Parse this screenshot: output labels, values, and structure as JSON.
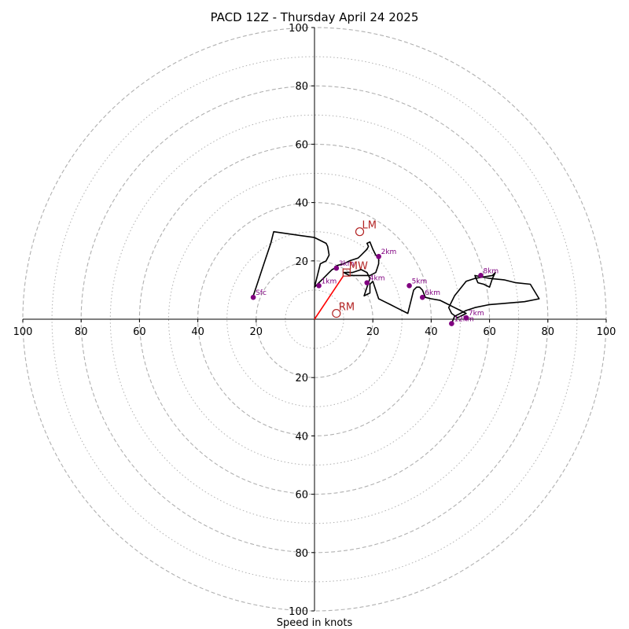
{
  "chart_data": {
    "type": "scatter",
    "title": "PACD 12Z - Thursday April 24 2025",
    "xlabel": "Speed in knots",
    "ylabel": "",
    "xlim": [
      -100,
      100
    ],
    "ylim": [
      -100,
      100
    ],
    "rings": {
      "major": [
        20,
        40,
        60,
        80,
        100
      ],
      "minor": [
        10,
        30,
        50,
        70,
        90
      ]
    },
    "tick_labels": {
      "x": [
        "100",
        "80",
        "60",
        "40",
        "20",
        "20",
        "40",
        "60",
        "80",
        "100"
      ],
      "y": [
        "100",
        "80",
        "60",
        "40",
        "20",
        "20",
        "40",
        "60",
        "80",
        "100"
      ]
    },
    "x_tick_values": [
      -100,
      -80,
      -60,
      -40,
      -20,
      20,
      40,
      60,
      80,
      100
    ],
    "y_tick_values": [
      100,
      80,
      60,
      40,
      20,
      -20,
      -40,
      -60,
      -80,
      -100
    ],
    "colors": {
      "hodograph": "#000000",
      "height_marker": "#800080",
      "motion": "#b22222",
      "shear_vector": "#ff0000",
      "rings": "#b0b0b0"
    },
    "hodograph": {
      "u": [
        -21,
        -20,
        -19,
        -18,
        -17,
        -16,
        -15,
        -14,
        0,
        4,
        4.5,
        5,
        4,
        2,
        1,
        0,
        1,
        2,
        4,
        5,
        6,
        7,
        8,
        7,
        8,
        10,
        12,
        15,
        16,
        17,
        18,
        18.5,
        18,
        19,
        20,
        21,
        22,
        22,
        21.5,
        21,
        19,
        17,
        15,
        12,
        10,
        13,
        16,
        18,
        19,
        17,
        19,
        19,
        20,
        22,
        22,
        24,
        26,
        28,
        30,
        32,
        34,
        35,
        36,
        37,
        38,
        40,
        43,
        45,
        48,
        50,
        52,
        49,
        47,
        46,
        48,
        52,
        55,
        58,
        61,
        62,
        61,
        60,
        58,
        56,
        55,
        60,
        65,
        69,
        74,
        77,
        72,
        66,
        60,
        55,
        52,
        50,
        48,
        47
      ],
      "v": [
        8,
        11,
        14,
        17,
        20,
        23,
        26,
        30,
        28,
        26,
        25,
        22,
        20,
        19,
        15,
        11,
        12,
        13,
        15,
        16,
        17,
        17.5,
        18,
        18,
        18.5,
        19,
        20,
        21,
        22,
        23,
        24,
        25,
        26,
        26.5,
        24,
        22,
        21,
        19,
        17.5,
        16,
        15,
        15,
        15,
        15,
        16,
        16,
        17,
        16,
        14,
        8,
        9,
        12,
        13,
        7,
        7,
        6,
        5,
        4,
        3,
        2,
        10,
        11,
        11,
        10,
        7.5,
        7,
        6.5,
        5.5,
        4,
        3,
        2,
        0.5,
        2,
        4,
        8,
        13,
        14,
        14.5,
        15,
        16,
        14,
        11,
        12,
        12.5,
        15,
        14,
        13.5,
        12.5,
        12,
        7,
        6,
        5.5,
        5,
        4,
        3,
        2,
        1,
        -1.5
      ]
    },
    "height_markers": [
      {
        "label": "Sfc",
        "u": -21,
        "v": 7.5
      },
      {
        "label": "1km",
        "u": 1.5,
        "v": 11.5
      },
      {
        "label": "2km",
        "u": 22,
        "v": 21.5
      },
      {
        "label": "3km",
        "u": 7.5,
        "v": 17.5
      },
      {
        "label": "4km",
        "u": 18,
        "v": 12.5
      },
      {
        "label": "5km",
        "u": 32.5,
        "v": 11.5
      },
      {
        "label": "6km",
        "u": 37,
        "v": 7.5
      },
      {
        "label": "7km",
        "u": 52,
        "v": 0.5
      },
      {
        "label": "8km",
        "u": 57,
        "v": 15
      },
      {
        "label": "12km",
        "u": 47,
        "v": -1.5
      }
    ],
    "storm_motion": [
      {
        "label": "LM",
        "u": 15.5,
        "v": 30
      },
      {
        "label": "MW",
        "u": 11,
        "v": 16
      },
      {
        "label": "RM",
        "u": 7.5,
        "v": 2
      }
    ],
    "shear_vector": {
      "u": [
        0,
        10
      ],
      "v": [
        0,
        15
      ]
    }
  }
}
